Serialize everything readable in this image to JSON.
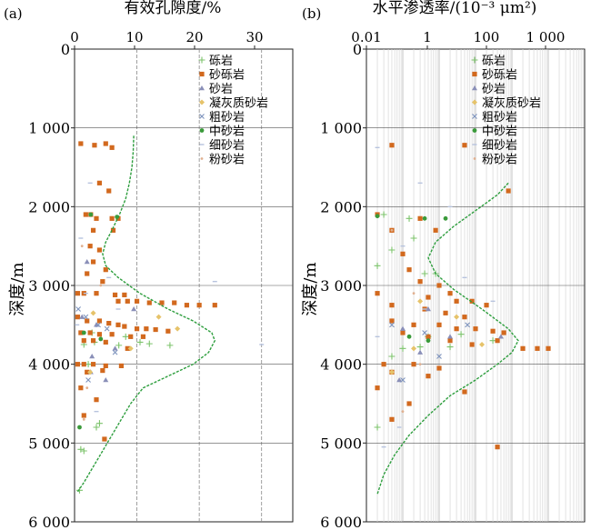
{
  "chart_data": [
    {
      "type": "scatter",
      "panel_label": "(a)",
      "title": "有效孔隙度/%",
      "xlabel": "有效孔隙度/%",
      "ylabel": "深度/m",
      "xscale": "linear",
      "xlim": [
        0,
        35
      ],
      "ylim": [
        6000,
        0
      ],
      "xticks": [
        "0",
        "10",
        "20",
        "30"
      ],
      "yticks": [
        "0",
        "1 000",
        "2 000",
        "3 000",
        "4 000",
        "5 000",
        "6 000"
      ],
      "legend": [
        "砾岩",
        "砂砾岩",
        "砂岩",
        "凝灰质砂岩",
        "粗砂岩",
        "中砂岩",
        "细砂岩",
        "粉砂岩"
      ],
      "legend_position": "top-right",
      "grid": "vertical",
      "series": [
        {
          "name": "砾岩",
          "points": [
            [
              1.5,
              3750
            ],
            [
              3.2,
              3720
            ],
            [
              2.2,
              4000
            ],
            [
              7.1,
              3760
            ],
            [
              12.0,
              3740
            ],
            [
              15.3,
              3760
            ],
            [
              3.5,
              4800
            ],
            [
              4.0,
              4750
            ],
            [
              1.0,
              5080
            ],
            [
              1.5,
              5100
            ],
            [
              0.8,
              5600
            ],
            [
              8.2,
              3650
            ],
            [
              10.5,
              3720
            ],
            [
              2.8,
              3600
            ]
          ]
        },
        {
          "name": "砂砾岩",
          "points": [
            [
              1.0,
              1200
            ],
            [
              3.2,
              1220
            ],
            [
              5.0,
              1200
            ],
            [
              6.0,
              1250
            ],
            [
              4.0,
              1700
            ],
            [
              5.5,
              1800
            ],
            [
              1.8,
              2100
            ],
            [
              2.6,
              2100
            ],
            [
              3.5,
              2150
            ],
            [
              6.0,
              2150
            ],
            [
              7.0,
              2150
            ],
            [
              3.0,
              2300
            ],
            [
              6.2,
              2300
            ],
            [
              2.5,
              2500
            ],
            [
              4.0,
              2550
            ],
            [
              3.0,
              2700
            ],
            [
              5.0,
              2800
            ],
            [
              2.0,
              2850
            ],
            [
              4.5,
              2950
            ],
            [
              0.5,
              3100
            ],
            [
              1.5,
              3100
            ],
            [
              3.5,
              3100
            ],
            [
              6.5,
              3120
            ],
            [
              8.0,
              3120
            ],
            [
              7.0,
              3200
            ],
            [
              8.5,
              3200
            ],
            [
              10.0,
              3200
            ],
            [
              12.0,
              3220
            ],
            [
              14.0,
              3220
            ],
            [
              16.0,
              3220
            ],
            [
              18.0,
              3250
            ],
            [
              20.0,
              3250
            ],
            [
              22.5,
              3250
            ],
            [
              0.5,
              3400
            ],
            [
              2.0,
              3450
            ],
            [
              4.0,
              3450
            ],
            [
              5.5,
              3480
            ],
            [
              7.0,
              3500
            ],
            [
              8.0,
              3520
            ],
            [
              10.0,
              3550
            ],
            [
              11.5,
              3550
            ],
            [
              13.0,
              3560
            ],
            [
              15.0,
              3580
            ],
            [
              1.0,
              3600
            ],
            [
              2.5,
              3600
            ],
            [
              4.0,
              3620
            ],
            [
              6.0,
              3620
            ],
            [
              9.0,
              3650
            ],
            [
              11.0,
              3650
            ],
            [
              1.5,
              3700
            ],
            [
              3.0,
              3700
            ],
            [
              5.0,
              3720
            ],
            [
              8.5,
              3800
            ],
            [
              0.5,
              4000
            ],
            [
              1.5,
              4000
            ],
            [
              3.0,
              4000
            ],
            [
              5.0,
              4020
            ],
            [
              7.5,
              4020
            ],
            [
              2.0,
              4100
            ],
            [
              4.5,
              4080
            ],
            [
              1.0,
              4300
            ],
            [
              3.5,
              4450
            ],
            [
              4.8,
              4950
            ],
            [
              1.5,
              4650
            ]
          ]
        },
        {
          "name": "砂岩",
          "points": [
            [
              2.0,
              2700
            ],
            [
              9.5,
              3300
            ],
            [
              3.5,
              3500
            ],
            [
              1.2,
              3400
            ],
            [
              2.8,
              3900
            ],
            [
              6.5,
              3800
            ],
            [
              5.0,
              4200
            ],
            [
              2.6,
              4100
            ]
          ]
        },
        {
          "name": "凝灰质砂岩",
          "points": [
            [
              3.0,
              3350
            ],
            [
              13.5,
              3400
            ],
            [
              9.0,
              3800
            ],
            [
              16.5,
              3550
            ],
            [
              2.5,
              4100
            ]
          ]
        },
        {
          "name": "粗砂岩",
          "points": [
            [
              1.8,
              3400
            ],
            [
              3.8,
              3500
            ],
            [
              5.2,
              3550
            ],
            [
              6.5,
              3850
            ],
            [
              0.6,
              3300
            ],
            [
              2.2,
              4200
            ]
          ]
        },
        {
          "name": "中砂岩",
          "points": [
            [
              2.6,
              2100
            ],
            [
              6.8,
              2130
            ],
            [
              1.5,
              3600
            ],
            [
              4.2,
              3680
            ],
            [
              0.8,
              4800
            ]
          ]
        },
        {
          "name": "细砂岩",
          "points": [
            [
              2.5,
              1700
            ],
            [
              1.0,
              2400
            ],
            [
              5.5,
              2900
            ],
            [
              7.0,
              3300
            ],
            [
              1.8,
              3100
            ],
            [
              22.5,
              2950
            ],
            [
              30.0,
              3750
            ],
            [
              0.4,
              3500
            ],
            [
              3.5,
              4600
            ]
          ]
        },
        {
          "name": "粉砂岩",
          "points": [
            [
              1.2,
              2500
            ],
            [
              4.2,
              3000
            ],
            [
              2.0,
              4300
            ],
            [
              1.5,
              4700
            ]
          ]
        }
      ],
      "trend": [
        [
          9.5,
          1100
        ],
        [
          9.4,
          1300
        ],
        [
          9.2,
          1500
        ],
        [
          8.8,
          1700
        ],
        [
          8.2,
          1900
        ],
        [
          7.2,
          2100
        ],
        [
          6.0,
          2300
        ],
        [
          5.0,
          2450
        ],
        [
          4.5,
          2600
        ],
        [
          5.0,
          2750
        ],
        [
          7.0,
          2900
        ],
        [
          10.5,
          3100
        ],
        [
          15.0,
          3300
        ],
        [
          19.0,
          3450
        ],
        [
          22.0,
          3600
        ],
        [
          22.5,
          3700
        ],
        [
          21.5,
          3850
        ],
        [
          19.0,
          4000
        ],
        [
          15.0,
          4150
        ],
        [
          11.0,
          4300
        ],
        [
          9.0,
          4500
        ],
        [
          7.5,
          4700
        ],
        [
          6.0,
          4900
        ],
        [
          4.5,
          5100
        ],
        [
          3.0,
          5300
        ],
        [
          1.5,
          5500
        ],
        [
          0.5,
          5620
        ]
      ]
    },
    {
      "type": "scatter",
      "panel_label": "(b)",
      "title": "水平渗透率/(10⁻³ μm²)",
      "xlabel": "水平渗透率/(10⁻³ μm²)",
      "ylabel": "深度/m",
      "xscale": "log",
      "xlim": [
        0.01,
        10000
      ],
      "ylim": [
        6000,
        0
      ],
      "xticks": [
        "0.01",
        "1",
        "100",
        "1 000"
      ],
      "yticks": [
        "0",
        "1 000",
        "2 000",
        "3 000",
        "4 000",
        "5 000",
        "6 000"
      ],
      "legend": [
        "砾岩",
        "砂砾岩",
        "砂岩",
        "凝灰质砂岩",
        "粗砂岩",
        "中砂岩",
        "细砂岩",
        "粉砂岩"
      ],
      "legend_position": "top-right",
      "grid": "vertical",
      "series": [
        {
          "name": "砾岩",
          "points": [
            [
              0.03,
              2100
            ],
            [
              0.15,
              2150
            ],
            [
              0.05,
              2550
            ],
            [
              0.2,
              2400
            ],
            [
              0.02,
              2750
            ],
            [
              0.4,
              2850
            ],
            [
              0.8,
              2850
            ],
            [
              0.1,
              3800
            ],
            [
              0.3,
              3780
            ],
            [
              2.0,
              3780
            ],
            [
              30,
              3700
            ],
            [
              0.05,
              3900
            ],
            [
              0.02,
              4800
            ],
            [
              0.5,
              3650
            ],
            [
              4.0,
              3620
            ]
          ]
        },
        {
          "name": "砂砾岩",
          "points": [
            [
              0.05,
              1220
            ],
            [
              5.0,
              1220
            ],
            [
              80,
              1800
            ],
            [
              0.02,
              2100
            ],
            [
              0.3,
              2150
            ],
            [
              0.05,
              2300
            ],
            [
              0.8,
              2300
            ],
            [
              0.1,
              2600
            ],
            [
              0.15,
              2800
            ],
            [
              0.3,
              2950
            ],
            [
              1.0,
              3000
            ],
            [
              2.0,
              3100
            ],
            [
              0.02,
              3100
            ],
            [
              0.5,
              3150
            ],
            [
              3.0,
              3200
            ],
            [
              8.0,
              3200
            ],
            [
              20,
              3250
            ],
            [
              0.05,
              3250
            ],
            [
              0.4,
              3300
            ],
            [
              1.5,
              3350
            ],
            [
              5.0,
              3400
            ],
            [
              0.05,
              3450
            ],
            [
              0.2,
              3500
            ],
            [
              1.0,
              3500
            ],
            [
              3.0,
              3550
            ],
            [
              10,
              3550
            ],
            [
              30,
              3580
            ],
            [
              60,
              3600
            ],
            [
              0.1,
              3600
            ],
            [
              0.5,
              3650
            ],
            [
              2.0,
              3700
            ],
            [
              8.0,
              3750
            ],
            [
              40,
              3700
            ],
            [
              200,
              3800
            ],
            [
              500,
              3800
            ],
            [
              1000,
              3800
            ],
            [
              0.03,
              4000
            ],
            [
              0.2,
              4000
            ],
            [
              1.0,
              4050
            ],
            [
              0.05,
              4100
            ],
            [
              0.5,
              4150
            ],
            [
              0.02,
              4300
            ],
            [
              5.0,
              4350
            ],
            [
              0.15,
              4500
            ],
            [
              0.05,
              4700
            ],
            [
              40,
              5050
            ]
          ]
        },
        {
          "name": "砂岩",
          "points": [
            [
              0.5,
              3300
            ],
            [
              0.1,
              3550
            ],
            [
              2.0,
              3650
            ],
            [
              0.3,
              3850
            ],
            [
              0.08,
              4200
            ],
            [
              50,
              3650
            ]
          ]
        },
        {
          "name": "凝灰质砂岩",
          "points": [
            [
              0.3,
              3200
            ],
            [
              3.0,
              3400
            ],
            [
              0.2,
              3800
            ],
            [
              15,
              3750
            ],
            [
              0.05,
              4100
            ]
          ]
        },
        {
          "name": "粗砂岩",
          "points": [
            [
              0.05,
              3500
            ],
            [
              0.4,
              3600
            ],
            [
              1.0,
              3900
            ],
            [
              0.1,
              4200
            ],
            [
              6.0,
              3500
            ]
          ]
        },
        {
          "name": "中砂岩",
          "points": [
            [
              0.02,
              2120
            ],
            [
              0.4,
              2150
            ],
            [
              1.5,
              2150
            ],
            [
              0.15,
              3650
            ],
            [
              0.5,
              3700
            ]
          ]
        },
        {
          "name": "细砂岩",
          "points": [
            [
              0.02,
              1250
            ],
            [
              0.3,
              1700
            ],
            [
              2.0,
              2000
            ],
            [
              0.1,
              2500
            ],
            [
              5.0,
              2900
            ],
            [
              30,
              3200
            ],
            [
              0.4,
              3300
            ],
            [
              0.02,
              3650
            ],
            [
              0.08,
              4800
            ],
            [
              0.03,
              5050
            ]
          ]
        },
        {
          "name": "粉砂岩",
          "points": [
            [
              0.05,
              2300
            ],
            [
              0.2,
              3100
            ],
            [
              0.3,
              4000
            ],
            [
              0.1,
              4600
            ]
          ]
        }
      ],
      "trend": [
        [
          80,
          1700
        ],
        [
          40,
          1850
        ],
        [
          10,
          2050
        ],
        [
          2.5,
          2250
        ],
        [
          0.8,
          2450
        ],
        [
          0.5,
          2650
        ],
        [
          0.8,
          2850
        ],
        [
          2.5,
          3050
        ],
        [
          15,
          3300
        ],
        [
          80,
          3550
        ],
        [
          150,
          3700
        ],
        [
          100,
          3850
        ],
        [
          40,
          4000
        ],
        [
          10,
          4200
        ],
        [
          2.0,
          4400
        ],
        [
          0.5,
          4650
        ],
        [
          0.15,
          4900
        ],
        [
          0.06,
          5150
        ],
        [
          0.03,
          5400
        ],
        [
          0.02,
          5650
        ]
      ]
    }
  ]
}
